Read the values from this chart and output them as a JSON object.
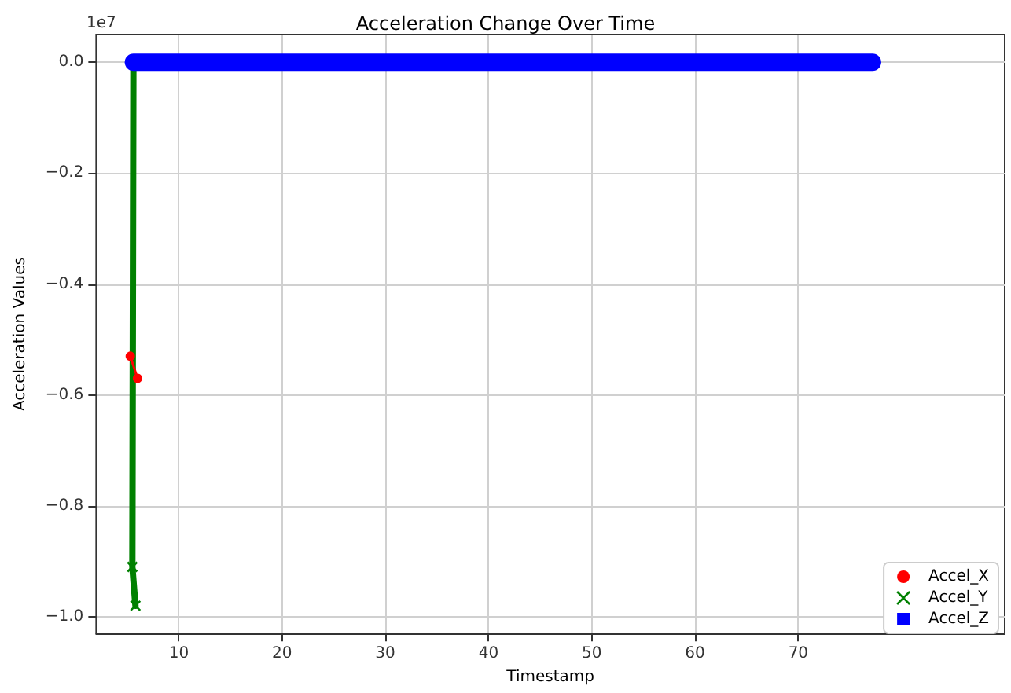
{
  "chart_data": {
    "type": "line",
    "title": "Acceleration Change Over Time",
    "xlabel": "Timestamp",
    "ylabel": "Acceleration Values",
    "annotations": [
      "1e7"
    ],
    "xlim": [
      2,
      90
    ],
    "xticks": [
      10,
      20,
      30,
      40,
      50,
      60,
      70
    ],
    "ylim": [
      -1.03,
      0.05
    ],
    "yticks": [
      {
        "value": 0,
        "label": "0.0"
      },
      {
        "value": -0.2,
        "label": "−0.2"
      },
      {
        "value": -0.4,
        "label": "−0.4"
      },
      {
        "value": -0.6,
        "label": "−0.6"
      },
      {
        "value": -0.8,
        "label": "−0.8"
      },
      {
        "value": -1.0,
        "label": "−1.0"
      }
    ],
    "grid": true,
    "legend": "bottom right",
    "series": [
      {
        "name": "Accel_X",
        "color": "#ff0000",
        "marker": "circle",
        "x": [
          5.3,
          6.0
        ],
        "values": [
          -0.53,
          -0.57
        ]
      },
      {
        "name": "Accel_Y",
        "color": "#008000",
        "marker": "cross",
        "x": [
          5.6,
          5.5,
          5.8
        ],
        "values": [
          0,
          -0.91,
          -0.98
        ]
      },
      {
        "name": "Accel_Z",
        "color": "#0000ff",
        "marker": "square",
        "x": [
          5.6,
          6,
          7,
          8,
          9,
          10,
          11,
          12,
          13,
          14,
          15,
          16,
          17,
          18,
          19,
          20,
          21,
          22,
          23,
          24,
          25,
          26,
          27,
          28,
          29,
          30,
          31,
          32,
          33,
          34,
          35,
          36,
          37,
          38,
          39,
          40,
          41,
          42,
          43,
          44,
          45,
          46,
          47,
          48,
          49,
          50,
          51,
          52,
          53,
          54,
          55,
          56,
          57,
          58,
          59,
          60,
          61,
          62,
          63,
          64,
          65,
          66,
          67,
          68,
          69,
          70,
          71,
          72,
          73,
          74,
          75,
          76,
          77.2
        ],
        "values": [
          0,
          0,
          0,
          0,
          0,
          0,
          0,
          0,
          0,
          0,
          0,
          0,
          0,
          0,
          0,
          0,
          0,
          0,
          0,
          0,
          0,
          0,
          0,
          0,
          0,
          0,
          0,
          0,
          0,
          0,
          0,
          0,
          0,
          0,
          0,
          0,
          0,
          0,
          0,
          0,
          0,
          0,
          0,
          0,
          0,
          0,
          0,
          0,
          0,
          0,
          0,
          0,
          0,
          0,
          0,
          0,
          0,
          0,
          0,
          0,
          0,
          0,
          0,
          0,
          0,
          0,
          0,
          0,
          0,
          0,
          0,
          0,
          0
        ]
      }
    ]
  }
}
